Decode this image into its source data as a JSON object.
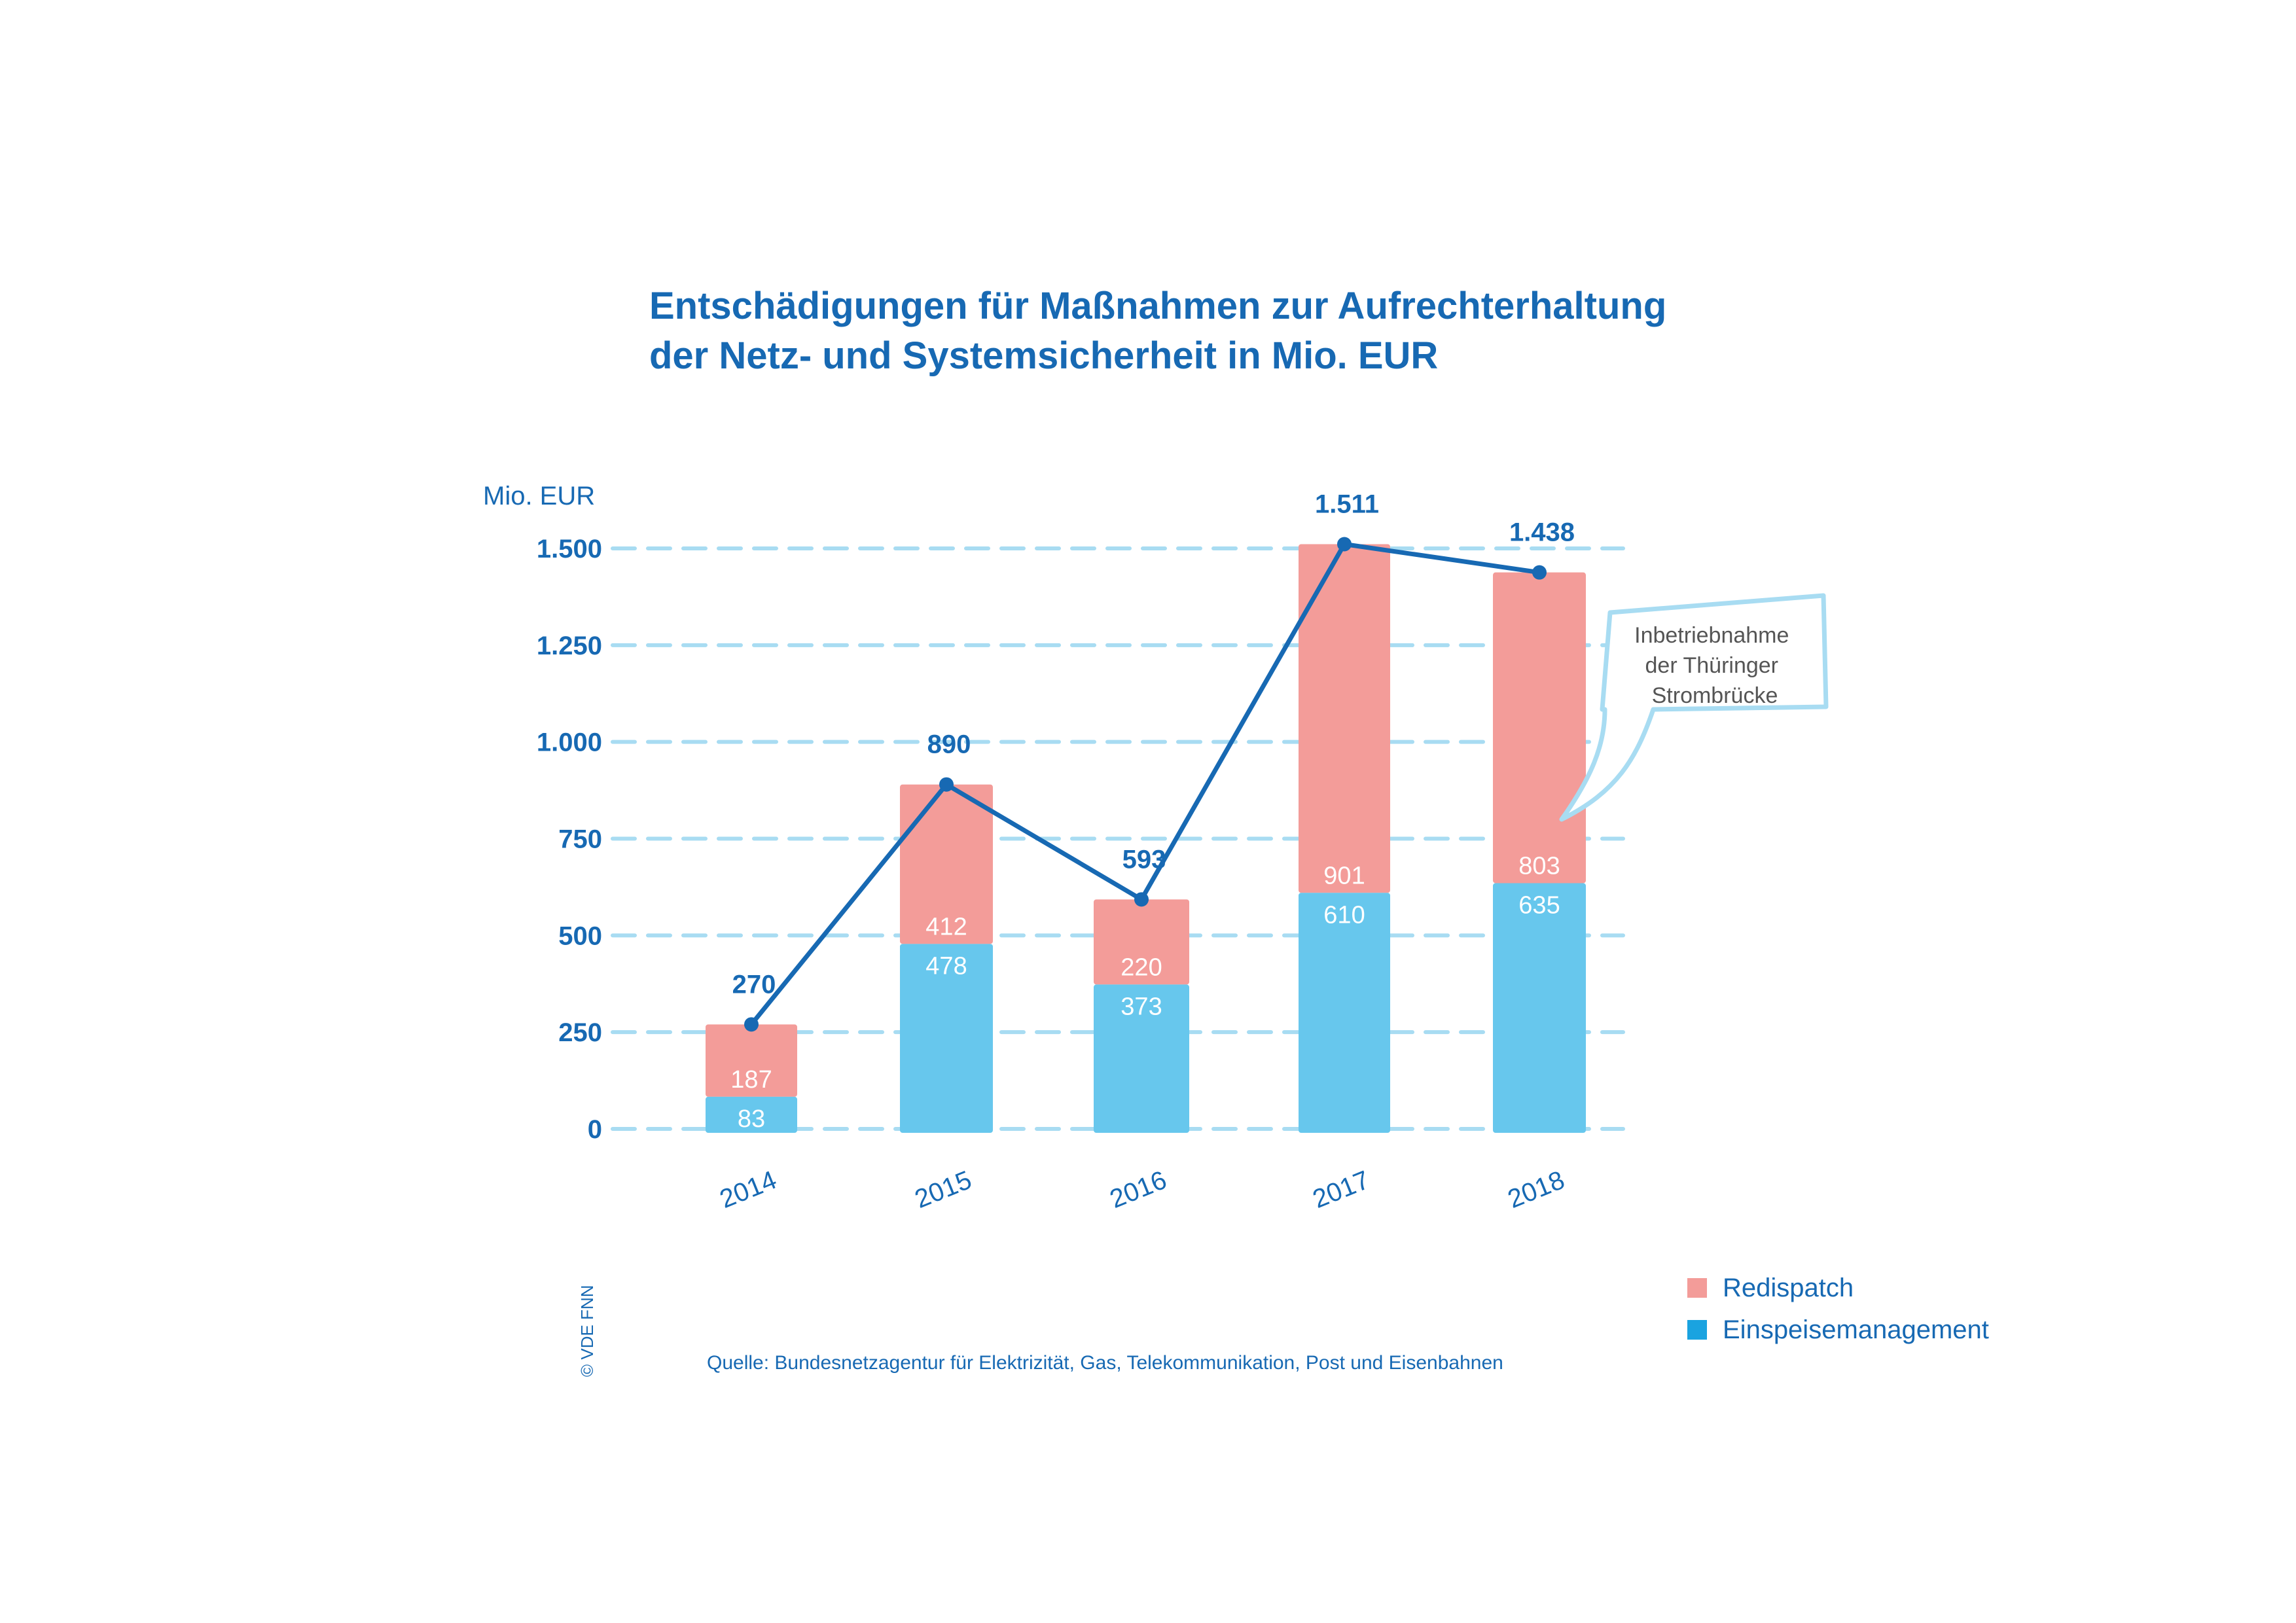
{
  "chart_data": {
    "type": "bar",
    "stacked": true,
    "title_line1": "Entschädigungen für Maßnahmen zur Aufrechterhaltung",
    "title_line2": "der Netz- und Systemsicherheit in Mio. EUR",
    "ylabel": "Mio. EUR",
    "ylim": [
      0,
      1500
    ],
    "yticks": [
      0,
      250,
      500,
      750,
      1000,
      1250,
      1500
    ],
    "ytick_labels": [
      "0",
      "250",
      "500",
      "750",
      "1.000",
      "1.250",
      "1.500"
    ],
    "categories": [
      "2014",
      "2015",
      "2016",
      "2017",
      "2018"
    ],
    "series": [
      {
        "name": "Einspeisemanagement",
        "values": [
          83,
          478,
          373,
          610,
          635
        ],
        "labels": [
          "83",
          "478",
          "373",
          "610",
          "635"
        ],
        "color": "#67c7ed"
      },
      {
        "name": "Redispatch",
        "values": [
          187,
          412,
          220,
          901,
          803
        ],
        "labels": [
          "187",
          "412",
          "220",
          "901",
          "803"
        ],
        "color": "#f39c99"
      }
    ],
    "total_line": {
      "values": [
        270,
        890,
        593,
        1511,
        1438
      ],
      "labels": [
        "270",
        "890",
        "593",
        "1.511",
        "1.438"
      ],
      "color": "#1769b3"
    },
    "grid": true,
    "legend_position": "bottom-right",
    "annotation": [
      "Inbetriebnahme",
      "der Thüringer",
      "Strombrücke"
    ]
  },
  "legend": [
    {
      "label": "Redispatch",
      "color": "#f39c99"
    },
    {
      "label": "Einspeisemanagement",
      "color": "#1aa3e0"
    }
  ],
  "source": "Quelle: Bundesnetzagentur für Elektrizität, Gas, Telekommunikation, Post und Eisenbahnen",
  "copyright": "© VDE FNN",
  "colors": {
    "accent": "#1769b3",
    "grid": "#a8dcf2",
    "callout": "#a8dcf2",
    "annotation_text": "#555555"
  }
}
